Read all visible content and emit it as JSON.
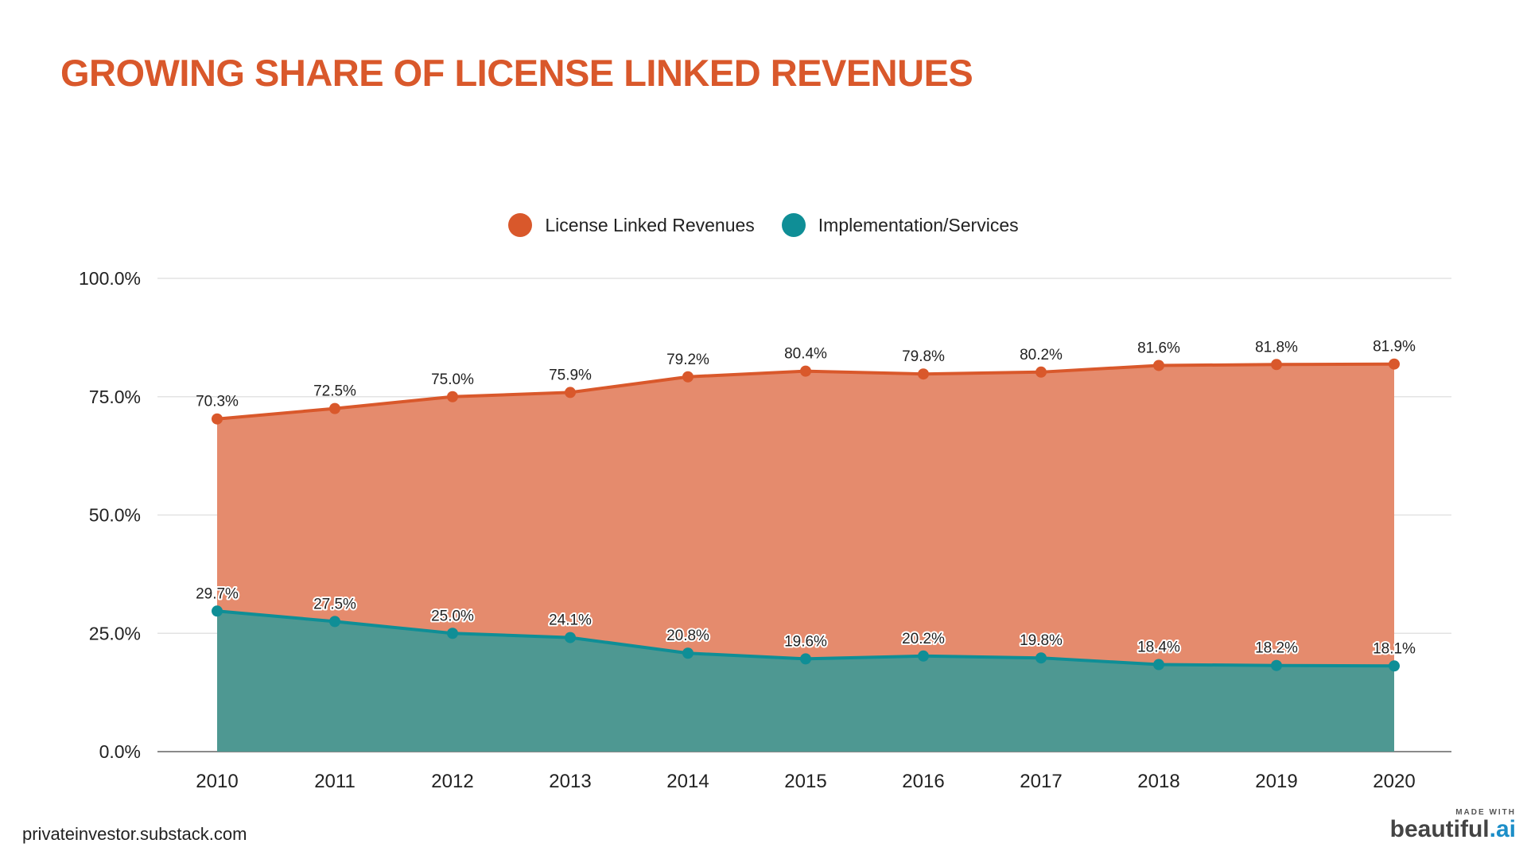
{
  "title": "GROWING SHARE OF LICENSE LINKED REVENUES",
  "footer": "privateinvestor.substack.com",
  "brand": {
    "made_with": "MADE WITH",
    "name": "beautiful",
    "dot": ".",
    "suffix": "ai"
  },
  "colors": {
    "license": "#d9582b",
    "license_fill": "#e58b6d",
    "services": "#0f8e96",
    "services_fill": "#4e9892"
  },
  "chart_data": {
    "type": "area",
    "title": "GROWING SHARE OF LICENSE LINKED REVENUES",
    "xlabel": "",
    "ylabel": "",
    "x": [
      "2010",
      "2011",
      "2012",
      "2013",
      "2014",
      "2015",
      "2016",
      "2017",
      "2018",
      "2019",
      "2020"
    ],
    "ylim": [
      0,
      100
    ],
    "yticks": [
      "0.0%",
      "25.0%",
      "50.0%",
      "75.0%",
      "100.0%"
    ],
    "grid": true,
    "legend": "top-center",
    "series": [
      {
        "name": "License Linked Revenues",
        "values": [
          70.3,
          72.5,
          75.0,
          75.9,
          79.2,
          80.4,
          79.8,
          80.2,
          81.6,
          81.8,
          81.9
        ],
        "labels": [
          "70.3%",
          "72.5%",
          "75.0%",
          "75.9%",
          "79.2%",
          "80.4%",
          "79.8%",
          "80.2%",
          "81.6%",
          "81.8%",
          "81.9%"
        ]
      },
      {
        "name": "Implementation/Services",
        "values": [
          29.7,
          27.5,
          25.0,
          24.1,
          20.8,
          19.6,
          20.2,
          19.8,
          18.4,
          18.2,
          18.1
        ],
        "labels": [
          "29.7%",
          "27.5%",
          "25.0%",
          "24.1%",
          "20.8%",
          "19.6%",
          "20.2%",
          "19.8%",
          "18.4%",
          "18.2%",
          "18.1%"
        ]
      }
    ]
  }
}
